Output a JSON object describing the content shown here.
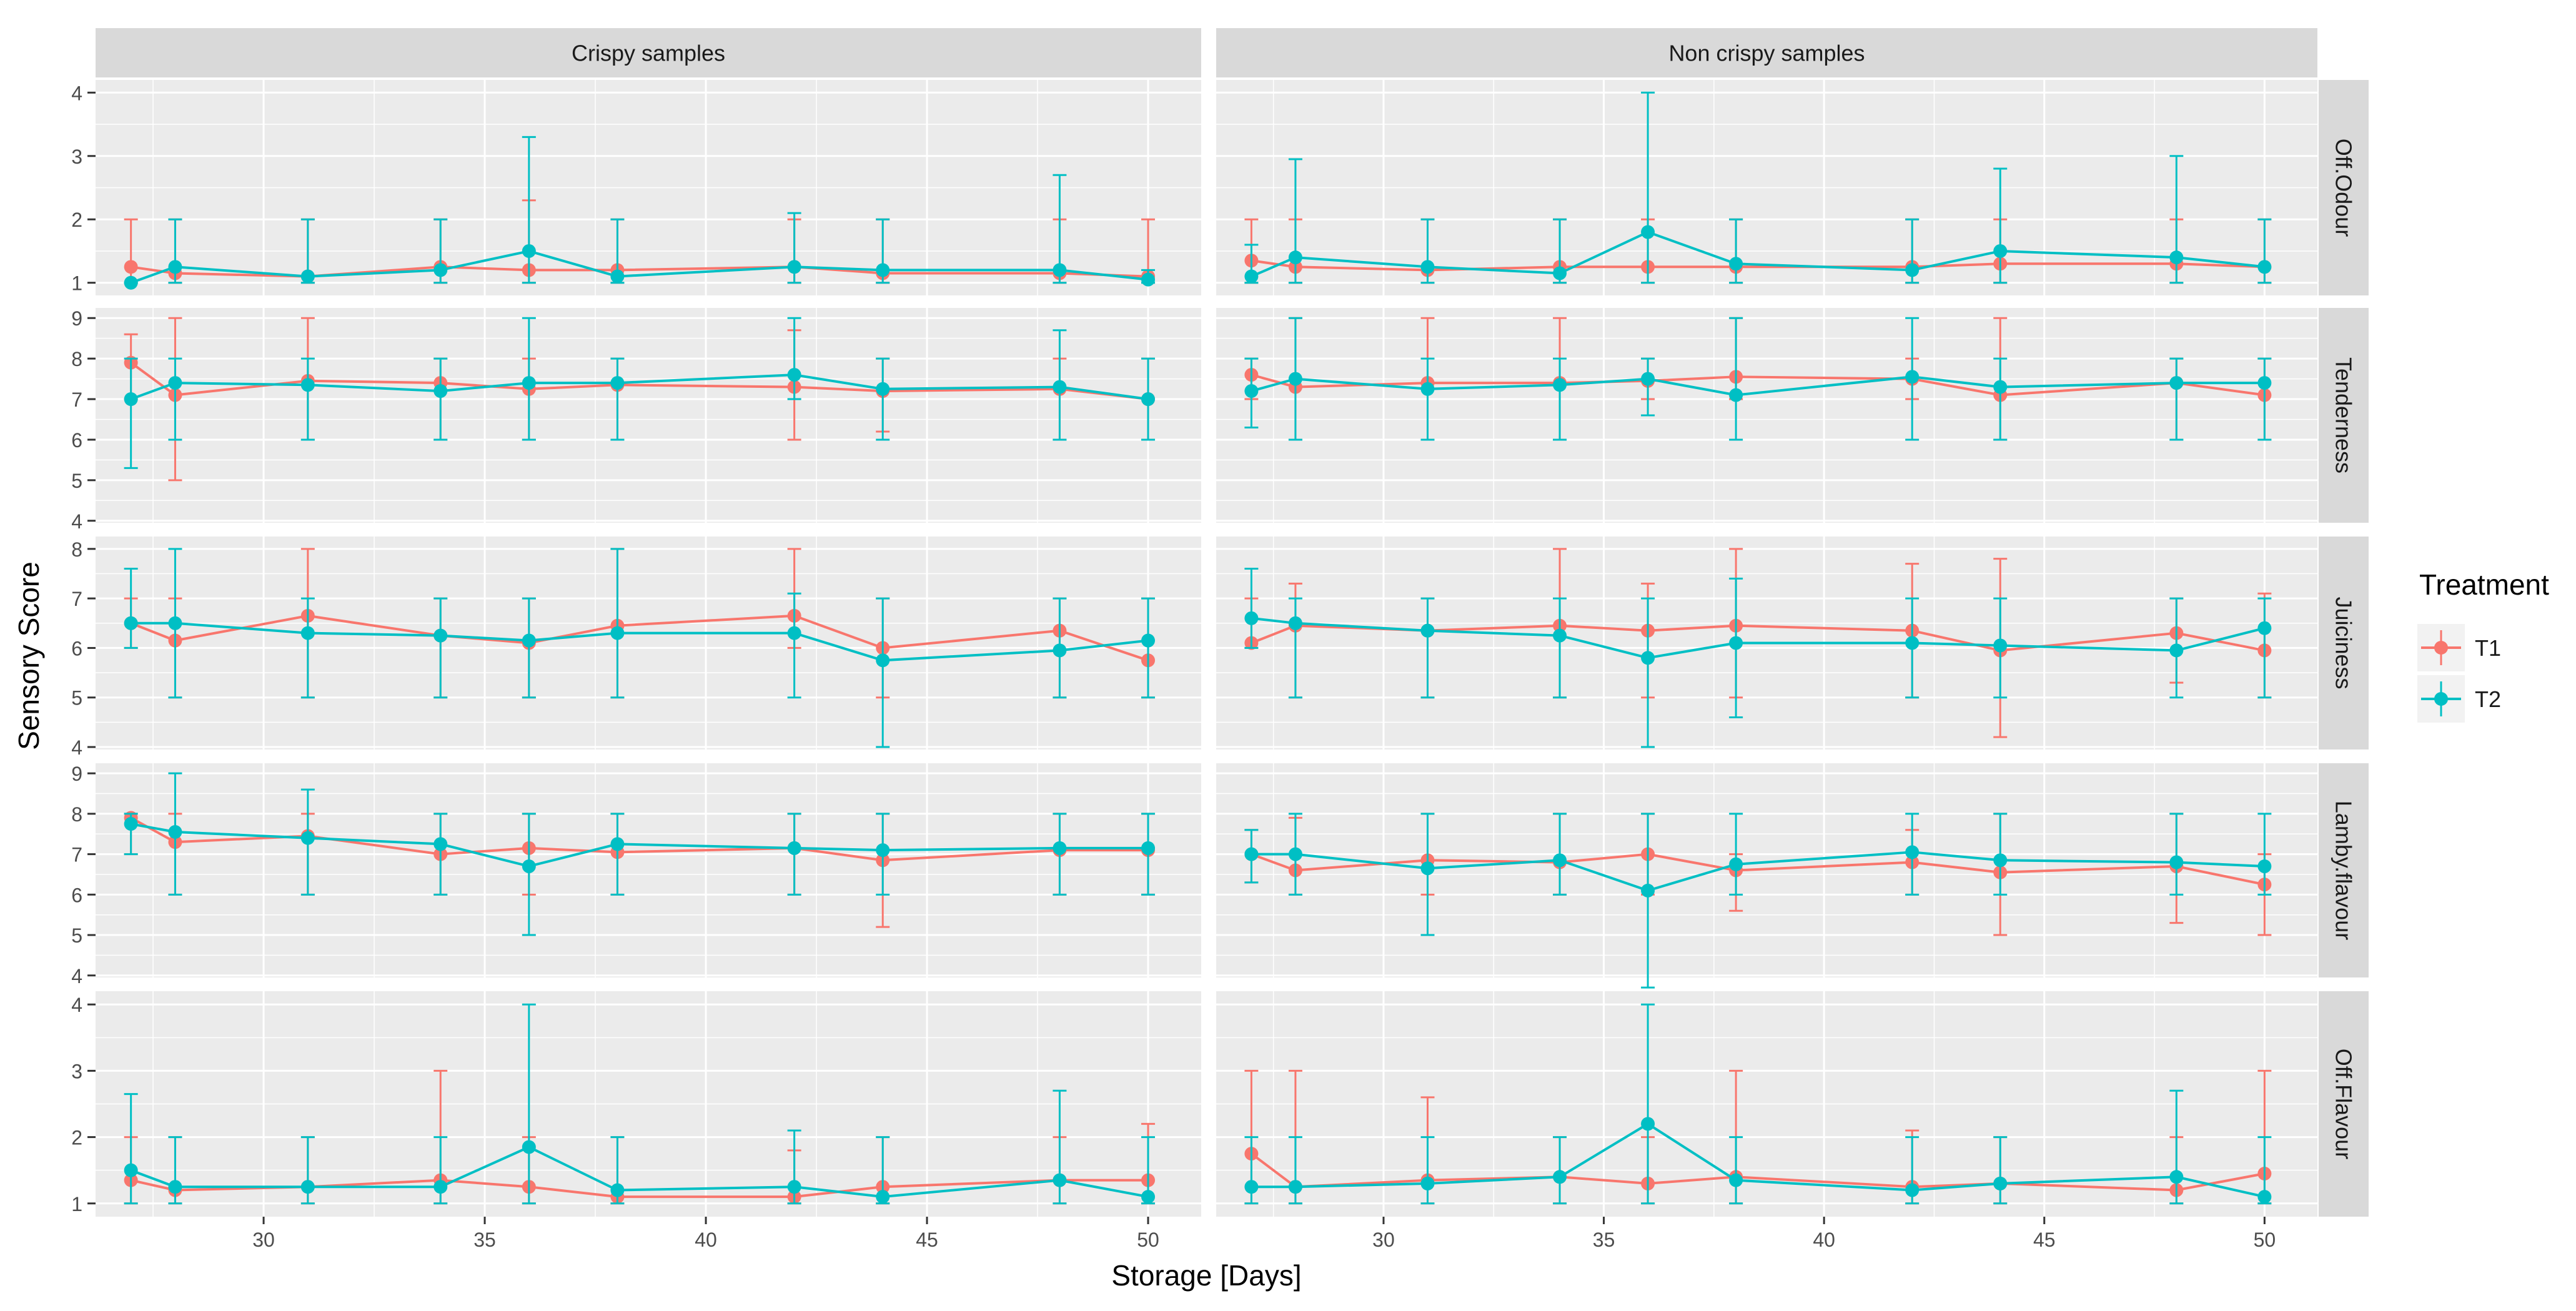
{
  "chart_data": {
    "type": "line",
    "title": "",
    "xlabel": "Storage [Days]",
    "ylabel": "Sensory Score",
    "x_ticks": [
      30,
      35,
      40,
      45,
      50
    ],
    "xlim": [
      26.2,
      51.2
    ],
    "days": [
      27,
      28,
      31,
      34,
      36,
      38,
      42,
      44,
      48,
      50
    ],
    "columns": [
      "Crispy samples",
      "Non crispy samples"
    ],
    "legend": {
      "title": "Treatment",
      "position": "right",
      "entries": [
        {
          "name": "T1",
          "color": "#F8766D"
        },
        {
          "name": "T2",
          "color": "#00BFC4"
        }
      ]
    },
    "facets": [
      {
        "label": "Off.Odour",
        "ylim": [
          0.8,
          4.2
        ],
        "ticks": [
          1,
          2,
          3,
          4
        ],
        "panels": [
          {
            "T1": {
              "mean": [
                1.25,
                1.15,
                1.1,
                1.25,
                1.2,
                1.2,
                1.25,
                1.15,
                1.15,
                1.1
              ],
              "lo": [
                1.0,
                1.0,
                1.0,
                1.0,
                1.0,
                1.0,
                1.0,
                1.0,
                1.0,
                1.0
              ],
              "hi": [
                2.0,
                2.0,
                2.0,
                2.0,
                2.3,
                2.0,
                2.0,
                2.0,
                2.0,
                2.0
              ]
            },
            "T2": {
              "mean": [
                1.0,
                1.25,
                1.1,
                1.2,
                1.5,
                1.1,
                1.25,
                1.2,
                1.2,
                1.05
              ],
              "lo": [
                1.0,
                1.0,
                1.0,
                1.0,
                1.0,
                1.0,
                1.0,
                1.0,
                1.0,
                1.0
              ],
              "hi": [
                1.0,
                2.0,
                2.0,
                2.0,
                3.3,
                2.0,
                2.1,
                2.0,
                2.7,
                1.2
              ]
            }
          },
          {
            "T1": {
              "mean": [
                1.35,
                1.25,
                1.2,
                1.25,
                1.25,
                1.25,
                1.25,
                1.3,
                1.3,
                1.25
              ],
              "lo": [
                1.0,
                1.0,
                1.0,
                1.0,
                1.0,
                1.0,
                1.0,
                1.0,
                1.0,
                1.0
              ],
              "hi": [
                2.0,
                2.0,
                2.0,
                2.0,
                2.0,
                2.0,
                2.0,
                2.0,
                2.0,
                2.0
              ]
            },
            "T2": {
              "mean": [
                1.1,
                1.4,
                1.25,
                1.15,
                1.8,
                1.3,
                1.2,
                1.5,
                1.4,
                1.25
              ],
              "lo": [
                1.0,
                1.0,
                1.0,
                1.0,
                1.0,
                1.0,
                1.0,
                1.0,
                1.0,
                1.0
              ],
              "hi": [
                1.6,
                2.95,
                2.0,
                2.0,
                4.0,
                2.0,
                2.0,
                2.8,
                3.0,
                2.0
              ]
            }
          }
        ]
      },
      {
        "label": "Tenderness",
        "ylim": [
          3.95,
          9.25
        ],
        "ticks": [
          4,
          5,
          6,
          7,
          8,
          9
        ],
        "panels": [
          {
            "T1": {
              "mean": [
                7.9,
                7.1,
                7.45,
                7.4,
                7.25,
                7.35,
                7.3,
                7.2,
                7.25,
                7.0
              ],
              "lo": [
                7.0,
                5.0,
                6.0,
                6.0,
                6.0,
                6.0,
                6.0,
                6.2,
                6.0,
                6.0
              ],
              "hi": [
                8.6,
                9.0,
                9.0,
                8.0,
                8.0,
                8.0,
                8.7,
                8.0,
                8.0,
                8.0
              ]
            },
            "T2": {
              "mean": [
                7.0,
                7.4,
                7.35,
                7.2,
                7.4,
                7.4,
                7.6,
                7.25,
                7.3,
                7.0
              ],
              "lo": [
                5.3,
                6.0,
                6.0,
                6.0,
                6.0,
                6.0,
                7.0,
                6.0,
                6.0,
                6.0
              ],
              "hi": [
                8.0,
                8.0,
                8.0,
                8.0,
                9.0,
                8.0,
                9.0,
                8.0,
                8.7,
                8.0
              ]
            }
          },
          {
            "T1": {
              "mean": [
                7.6,
                7.3,
                7.4,
                7.4,
                7.45,
                7.55,
                7.5,
                7.1,
                7.4,
                7.1
              ],
              "lo": [
                7.0,
                6.0,
                6.0,
                6.0,
                7.0,
                7.0,
                7.0,
                6.0,
                6.0,
                6.0
              ],
              "hi": [
                8.0,
                9.0,
                9.0,
                9.0,
                8.0,
                9.0,
                8.0,
                9.0,
                8.0,
                8.0
              ]
            },
            "T2": {
              "mean": [
                7.2,
                7.5,
                7.25,
                7.35,
                7.5,
                7.1,
                7.55,
                7.3,
                7.4,
                7.4
              ],
              "lo": [
                6.3,
                6.0,
                6.0,
                6.0,
                6.6,
                6.0,
                6.0,
                6.0,
                6.0,
                6.0
              ],
              "hi": [
                8.0,
                9.0,
                8.0,
                8.0,
                8.0,
                9.0,
                9.0,
                8.0,
                8.0,
                8.0
              ]
            }
          }
        ]
      },
      {
        "label": "Juiciness",
        "ylim": [
          3.95,
          8.25
        ],
        "ticks": [
          4,
          5,
          6,
          7,
          8
        ],
        "panels": [
          {
            "T1": {
              "mean": [
                6.5,
                6.15,
                6.65,
                6.25,
                6.1,
                6.45,
                6.65,
                6.0,
                6.35,
                5.75
              ],
              "lo": [
                6.0,
                5.0,
                5.0,
                5.0,
                5.0,
                5.0,
                6.0,
                5.0,
                5.0,
                5.0
              ],
              "hi": [
                7.0,
                7.0,
                8.0,
                7.0,
                7.0,
                8.0,
                8.0,
                7.0,
                7.0,
                7.0
              ]
            },
            "T2": {
              "mean": [
                6.5,
                6.5,
                6.3,
                6.25,
                6.15,
                6.3,
                6.3,
                5.75,
                5.95,
                6.15
              ],
              "lo": [
                6.0,
                5.0,
                5.0,
                5.0,
                5.0,
                5.0,
                5.0,
                4.0,
                5.0,
                5.0
              ],
              "hi": [
                7.6,
                8.0,
                7.0,
                7.0,
                7.0,
                8.0,
                7.1,
                7.0,
                7.0,
                7.0
              ]
            }
          },
          {
            "T1": {
              "mean": [
                6.1,
                6.45,
                6.35,
                6.45,
                6.35,
                6.45,
                6.35,
                5.95,
                6.3,
                5.95
              ],
              "lo": [
                6.0,
                5.0,
                5.0,
                5.0,
                5.0,
                5.0,
                5.0,
                4.2,
                5.3,
                5.0
              ],
              "hi": [
                7.0,
                7.3,
                7.0,
                8.0,
                7.3,
                8.0,
                7.7,
                7.8,
                7.0,
                7.1
              ]
            },
            "T2": {
              "mean": [
                6.6,
                6.5,
                6.35,
                6.25,
                5.8,
                6.1,
                6.1,
                6.05,
                5.95,
                6.4
              ],
              "lo": [
                6.0,
                5.0,
                5.0,
                5.0,
                4.0,
                4.6,
                5.0,
                5.0,
                5.0,
                5.0
              ],
              "hi": [
                7.6,
                7.0,
                7.0,
                7.0,
                7.0,
                7.4,
                7.0,
                7.0,
                7.0,
                7.0
              ]
            }
          }
        ]
      },
      {
        "label": "Lamby.flavour",
        "ylim": [
          3.95,
          9.25
        ],
        "ticks": [
          4,
          5,
          6,
          7,
          8,
          9
        ],
        "panels": [
          {
            "T1": {
              "mean": [
                7.9,
                7.3,
                7.45,
                7.0,
                7.15,
                7.05,
                7.15,
                6.85,
                7.1,
                7.1
              ],
              "lo": [
                7.0,
                6.0,
                6.0,
                6.0,
                6.0,
                6.0,
                6.0,
                5.2,
                6.0,
                6.0
              ],
              "hi": [
                8.0,
                8.0,
                8.0,
                8.0,
                8.0,
                8.0,
                8.0,
                8.0,
                8.0,
                8.0
              ]
            },
            "T2": {
              "mean": [
                7.75,
                7.55,
                7.4,
                7.25,
                6.7,
                7.25,
                7.15,
                7.1,
                7.15,
                7.15
              ],
              "lo": [
                7.0,
                6.0,
                6.0,
                6.0,
                5.0,
                6.0,
                6.0,
                6.0,
                6.0,
                6.0
              ],
              "hi": [
                8.0,
                9.0,
                8.6,
                8.0,
                8.0,
                8.0,
                8.0,
                8.0,
                8.0,
                8.0
              ]
            }
          },
          {
            "T1": {
              "mean": [
                7.0,
                6.6,
                6.85,
                6.8,
                7.0,
                6.6,
                6.8,
                6.55,
                6.7,
                6.25
              ],
              "lo": [
                6.3,
                6.0,
                6.0,
                6.0,
                6.0,
                5.6,
                6.0,
                5.0,
                5.3,
                5.0
              ],
              "hi": [
                7.6,
                7.9,
                8.0,
                8.0,
                8.0,
                7.0,
                7.6,
                8.0,
                8.0,
                7.0
              ]
            },
            "T2": {
              "mean": [
                7.0,
                7.0,
                6.65,
                6.85,
                6.1,
                6.75,
                7.05,
                6.85,
                6.8,
                6.7
              ],
              "lo": [
                6.3,
                6.0,
                5.0,
                6.0,
                3.7,
                6.0,
                6.0,
                6.0,
                6.0,
                6.0
              ],
              "hi": [
                7.6,
                8.0,
                8.0,
                8.0,
                8.0,
                8.0,
                8.0,
                8.0,
                8.0,
                8.0
              ]
            }
          }
        ]
      },
      {
        "label": "Off.Flavour",
        "ylim": [
          0.8,
          4.2
        ],
        "ticks": [
          1,
          2,
          3,
          4
        ],
        "panels": [
          {
            "T1": {
              "mean": [
                1.35,
                1.2,
                1.25,
                1.35,
                1.25,
                1.1,
                1.1,
                1.25,
                1.35,
                1.35
              ],
              "lo": [
                1.0,
                1.0,
                1.0,
                1.0,
                1.0,
                1.0,
                1.0,
                1.0,
                1.0,
                1.0
              ],
              "hi": [
                2.0,
                2.0,
                2.0,
                3.0,
                2.0,
                2.0,
                1.8,
                2.0,
                2.0,
                2.2
              ]
            },
            "T2": {
              "mean": [
                1.5,
                1.25,
                1.25,
                1.25,
                1.85,
                1.2,
                1.25,
                1.1,
                1.35,
                1.1
              ],
              "lo": [
                1.0,
                1.0,
                1.0,
                1.0,
                1.0,
                1.0,
                1.0,
                1.0,
                1.0,
                1.0
              ],
              "hi": [
                2.65,
                2.0,
                2.0,
                2.0,
                4.0,
                2.0,
                2.1,
                2.0,
                2.7,
                2.0
              ]
            }
          },
          {
            "T1": {
              "mean": [
                1.75,
                1.25,
                1.35,
                1.4,
                1.3,
                1.4,
                1.25,
                1.3,
                1.2,
                1.45
              ],
              "lo": [
                1.0,
                1.0,
                1.0,
                1.0,
                1.0,
                1.0,
                1.0,
                1.0,
                1.0,
                1.0
              ],
              "hi": [
                3.0,
                3.0,
                2.6,
                2.0,
                2.0,
                3.0,
                2.1,
                2.0,
                2.0,
                3.0
              ]
            },
            "T2": {
              "mean": [
                1.25,
                1.25,
                1.3,
                1.4,
                2.2,
                1.35,
                1.2,
                1.3,
                1.4,
                1.1
              ],
              "lo": [
                1.0,
                1.0,
                1.0,
                1.0,
                1.0,
                1.0,
                1.0,
                1.0,
                1.0,
                1.0
              ],
              "hi": [
                2.0,
                2.0,
                2.0,
                2.0,
                4.0,
                2.0,
                2.0,
                2.0,
                2.7,
                2.0
              ]
            }
          }
        ]
      }
    ]
  }
}
